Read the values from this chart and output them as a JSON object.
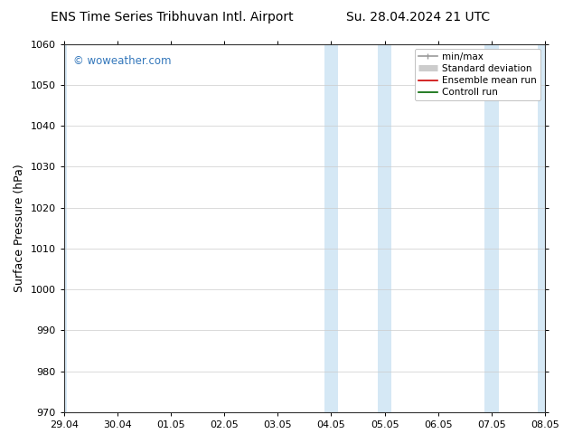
{
  "title_left": "ENS Time Series Tribhuvan Intl. Airport",
  "title_right": "Su. 28.04.2024 21 UTC",
  "ylabel": "Surface Pressure (hPa)",
  "ylim": [
    970,
    1060
  ],
  "yticks": [
    970,
    980,
    990,
    1000,
    1010,
    1020,
    1030,
    1040,
    1050,
    1060
  ],
  "xlim_min": 0.0,
  "xlim_max": 9.0,
  "xtick_positions": [
    0,
    1,
    2,
    3,
    4,
    5,
    6,
    7,
    8,
    9
  ],
  "xtick_labels": [
    "29.04",
    "30.04",
    "01.05",
    "02.05",
    "03.05",
    "04.05",
    "05.05",
    "06.05",
    "07.05",
    "08.05"
  ],
  "shaded_bands": [
    {
      "xmin": -0.05,
      "xmax": 0.05,
      "color": "#d5e8f5"
    },
    {
      "xmin": 4.87,
      "xmax": 5.13,
      "color": "#d5e8f5"
    },
    {
      "xmin": 5.87,
      "xmax": 6.13,
      "color": "#d5e8f5"
    },
    {
      "xmin": 7.87,
      "xmax": 8.13,
      "color": "#d5e8f5"
    },
    {
      "xmin": 8.87,
      "xmax": 9.05,
      "color": "#d5e8f5"
    }
  ],
  "watermark_text": "© woweather.com",
  "watermark_color": "#3377bb",
  "legend_items": [
    {
      "label": "min/max",
      "color": "#999999",
      "lw": 1.2
    },
    {
      "label": "Standard deviation",
      "color": "#cccccc",
      "lw": 5
    },
    {
      "label": "Ensemble mean run",
      "color": "#cc0000",
      "lw": 1.2
    },
    {
      "label": "Controll run",
      "color": "#006600",
      "lw": 1.2
    }
  ],
  "bg_color": "#ffffff",
  "plot_bg_color": "#ffffff",
  "title_fontsize": 10,
  "axis_label_fontsize": 9,
  "tick_fontsize": 8,
  "legend_fontsize": 7.5
}
